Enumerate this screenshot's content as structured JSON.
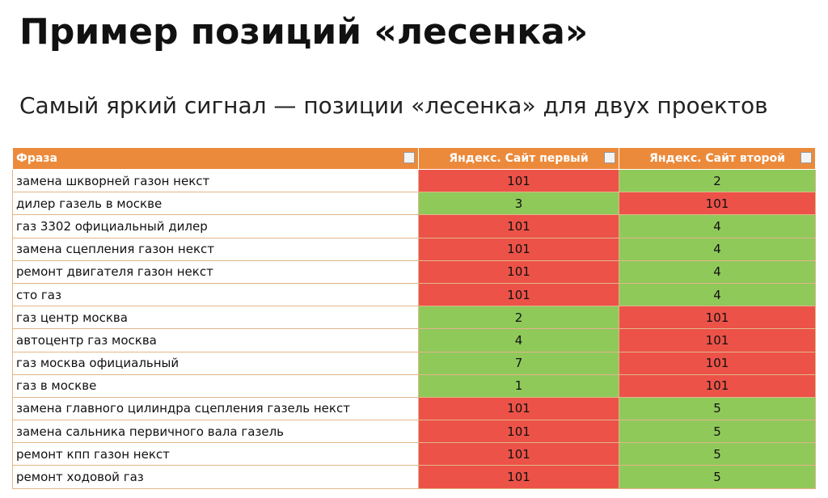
{
  "header": {
    "title": "Пример позиций «лесенка»",
    "subtitle": "Самый яркий сигнал — позиции «лесенка» для двух проектов"
  },
  "table": {
    "columns": [
      "Фраза",
      "Яндекс. Сайт первый",
      "Яндекс. Сайт второй"
    ],
    "header_color": "#ec8a3b",
    "colors": {
      "high": "#ec5248",
      "low": "#8fc95a"
    },
    "rows": [
      [
        "замена шкворней газон некст",
        101,
        2
      ],
      [
        "дилер газель в москве",
        3,
        101
      ],
      [
        "газ 3302 официальный дилер",
        101,
        4
      ],
      [
        "замена сцепления газон некст",
        101,
        4
      ],
      [
        "ремонт двигателя газон некст",
        101,
        4
      ],
      [
        "сто газ",
        101,
        4
      ],
      [
        "газ центр москва",
        2,
        101
      ],
      [
        "автоцентр газ москва",
        4,
        101
      ],
      [
        "газ москва официальный",
        7,
        101
      ],
      [
        "газ в москве",
        1,
        101
      ],
      [
        "замена главного цилиндра сцепления газель некст",
        101,
        5
      ],
      [
        "замена сальника первичного вала газель",
        101,
        5
      ],
      [
        "ремонт кпп газон некст",
        101,
        5
      ],
      [
        "ремонт ходовой газ",
        101,
        5
      ]
    ],
    "cell_colors": [
      [
        "high",
        "low"
      ],
      [
        "low",
        "high"
      ],
      [
        "high",
        "low"
      ],
      [
        "high",
        "low"
      ],
      [
        "high",
        "low"
      ],
      [
        "high",
        "low"
      ],
      [
        "low",
        "high"
      ],
      [
        "low",
        "high"
      ],
      [
        "low",
        "high"
      ],
      [
        "low",
        "high"
      ],
      [
        "high",
        "low"
      ],
      [
        "high",
        "low"
      ],
      [
        "high",
        "low"
      ],
      [
        "high",
        "low"
      ]
    ]
  }
}
